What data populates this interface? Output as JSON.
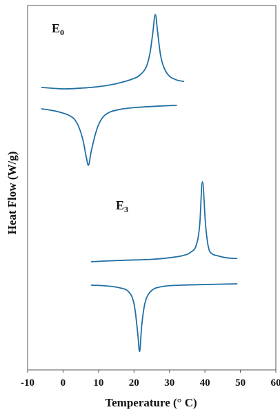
{
  "chart_data": {
    "type": "line",
    "title": "",
    "xlabel": "Temperature (° C)",
    "ylabel": "Heat Flow (W/g)",
    "xlim": [
      -10,
      60
    ],
    "x_ticks": [
      "-10",
      "0",
      "10",
      "20",
      "30",
      "40",
      "50",
      "60"
    ],
    "y_ticks_shown": false,
    "grid": false,
    "groups": [
      {
        "label_main": "E",
        "label_sub": "0"
      },
      {
        "label_main": "E",
        "label_sub": "3"
      }
    ],
    "series": [
      {
        "group": 0,
        "kind": "exotherm",
        "x": [
          -6,
          0,
          5,
          10,
          15,
          20,
          22,
          23.5,
          24.5,
          25.3,
          26,
          26.7,
          27.5,
          28.5,
          30,
          32,
          34
        ],
        "y": [
          0.02,
          0.0,
          0.01,
          0.03,
          0.07,
          0.14,
          0.2,
          0.3,
          0.48,
          0.75,
          1.0,
          0.75,
          0.45,
          0.28,
          0.17,
          0.12,
          0.1
        ]
      },
      {
        "group": 0,
        "kind": "endotherm",
        "x": [
          -6,
          -2,
          2,
          4,
          5.5,
          6.5,
          7.2,
          8,
          9.5,
          11,
          13,
          16,
          20,
          25,
          32
        ],
        "y": [
          0.0,
          -0.04,
          -0.12,
          -0.25,
          -0.5,
          -0.8,
          -0.95,
          -0.7,
          -0.35,
          -0.16,
          -0.06,
          -0.01,
          0.02,
          0.04,
          0.06
        ]
      },
      {
        "group": 1,
        "kind": "exotherm",
        "x": [
          8,
          12,
          18,
          25,
          30,
          34,
          36,
          37.5,
          38.5,
          39.3,
          40.2,
          41,
          42,
          44,
          46,
          49
        ],
        "y": [
          0.0,
          0.01,
          0.02,
          0.03,
          0.05,
          0.08,
          0.12,
          0.2,
          0.45,
          1.0,
          0.45,
          0.18,
          0.1,
          0.07,
          0.05,
          0.04
        ]
      },
      {
        "group": 1,
        "kind": "endotherm",
        "x": [
          8,
          12,
          16,
          18.5,
          20,
          21,
          21.6,
          22.2,
          23.2,
          25,
          28,
          33,
          40,
          49
        ],
        "y": [
          0.0,
          -0.01,
          -0.04,
          -0.1,
          -0.28,
          -0.7,
          -1.0,
          -0.6,
          -0.25,
          -0.08,
          -0.02,
          0.0,
          0.01,
          0.02
        ]
      }
    ],
    "colors": {
      "line": "#1f6fa3",
      "axis": "#555555"
    }
  }
}
